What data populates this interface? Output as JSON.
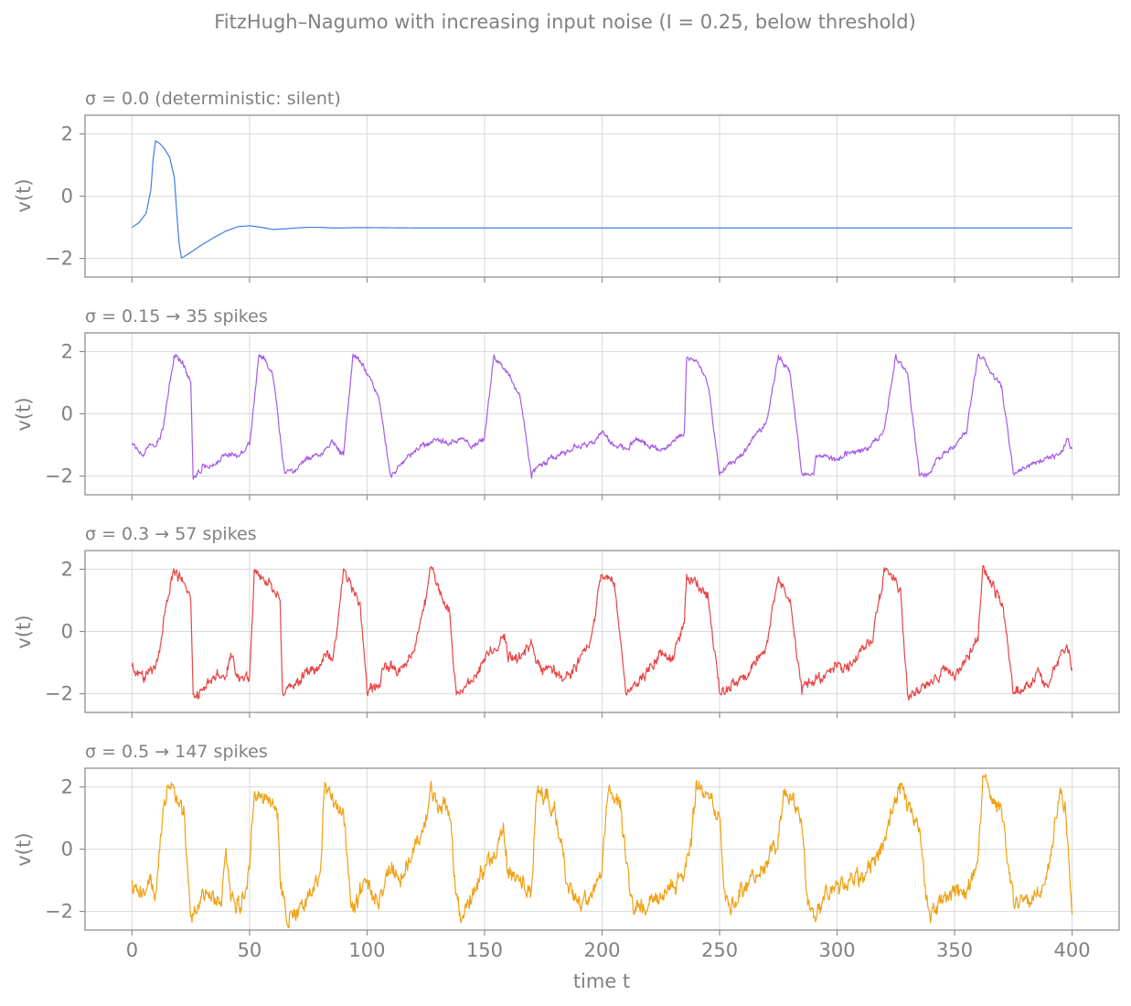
{
  "figure": {
    "suptitle": "FitzHugh–Nagumo with increasing input noise (I = 0.25, below threshold)",
    "xlabel": "time  t"
  },
  "chart_data": [
    {
      "type": "line",
      "title": "σ = 0.0  (deterministic: silent)",
      "ylabel": "v(t)",
      "color": "#3d7fe0",
      "noise": 0.0,
      "xlim": [
        -20,
        420
      ],
      "ylim": [
        -2.6,
        2.6
      ],
      "xticks": [
        0,
        50,
        100,
        150,
        200,
        250,
        300,
        350,
        400
      ],
      "yticks": [
        -2,
        0,
        2
      ],
      "xticklabels": [
        "0",
        "50",
        "100",
        "150",
        "200",
        "250",
        "300",
        "350",
        "400"
      ],
      "yticklabels": [
        "−2",
        "0",
        "2"
      ],
      "grid": true,
      "series": [
        {
          "x": [
            0,
            3,
            6,
            8,
            9,
            10,
            12,
            14,
            16,
            18,
            19,
            20,
            21,
            22,
            26,
            30,
            35,
            40,
            45,
            50,
            55,
            60,
            65,
            70,
            75,
            80,
            85,
            90,
            95,
            100,
            120,
            150,
            200,
            300,
            400
          ],
          "y": [
            -1.0,
            -0.85,
            -0.55,
            0.2,
            1.2,
            1.78,
            1.68,
            1.5,
            1.25,
            0.6,
            -0.5,
            -1.5,
            -1.98,
            -1.95,
            -1.75,
            -1.55,
            -1.32,
            -1.12,
            -0.98,
            -0.95,
            -1.0,
            -1.07,
            -1.05,
            -1.02,
            -1.0,
            -1.0,
            -1.02,
            -1.02,
            -1.01,
            -1.01,
            -1.02,
            -1.02,
            -1.02,
            -1.02,
            -1.02
          ]
        }
      ]
    },
    {
      "type": "line",
      "title": "σ = 0.15   →  35 spikes",
      "ylabel": "v(t)",
      "color": "#a55be8",
      "noise": 0.15,
      "xlim": [
        -20,
        420
      ],
      "ylim": [
        -2.6,
        2.6
      ],
      "xticks": [
        0,
        50,
        100,
        150,
        200,
        250,
        300,
        350,
        400
      ],
      "yticks": [
        -2,
        0,
        2
      ],
      "xticklabels": [
        "0",
        "50",
        "100",
        "150",
        "200",
        "250",
        "300",
        "350",
        "400"
      ],
      "yticklabels": [
        "−2",
        "0",
        "2"
      ],
      "grid": true,
      "series": [
        {
          "x": [
            0,
            5,
            8,
            10,
            12,
            13,
            15,
            18,
            22,
            25,
            26,
            30,
            35,
            40,
            45,
            50,
            54,
            56,
            60,
            65,
            66,
            70,
            75,
            80,
            85,
            90,
            94,
            96,
            100,
            105,
            110,
            111,
            115,
            120,
            125,
            130,
            135,
            140,
            145,
            150,
            154,
            156,
            160,
            165,
            170,
            171,
            175,
            180,
            185,
            190,
            195,
            200,
            205,
            210,
            215,
            220,
            225,
            230,
            235,
            236,
            240,
            245,
            250,
            251,
            255,
            260,
            265,
            270,
            275,
            277,
            280,
            285,
            290,
            291,
            295,
            300,
            305,
            310,
            315,
            320,
            325,
            326,
            330,
            335,
            340,
            341,
            345,
            350,
            355,
            360,
            363,
            365,
            370,
            375,
            376,
            380,
            385,
            390,
            395,
            398,
            400
          ],
          "y": [
            -1.0,
            -1.3,
            -1.0,
            -1.1,
            -0.7,
            -0.5,
            0.4,
            1.9,
            1.6,
            1.0,
            -2.05,
            -1.7,
            -1.6,
            -1.3,
            -1.3,
            -1.0,
            1.85,
            1.8,
            1.2,
            -2.0,
            -1.9,
            -1.8,
            -1.4,
            -1.3,
            -0.9,
            -1.3,
            1.9,
            1.8,
            1.3,
            0.6,
            -2.05,
            -1.9,
            -1.6,
            -1.2,
            -1.0,
            -0.85,
            -0.95,
            -0.8,
            -1.0,
            -0.8,
            1.9,
            1.6,
            1.3,
            0.6,
            -2.0,
            -1.8,
            -1.6,
            -1.4,
            -1.2,
            -1.0,
            -1.0,
            -0.6,
            -1.0,
            -1.1,
            -0.8,
            -1.0,
            -1.2,
            -0.9,
            -0.6,
            1.85,
            1.7,
            1.0,
            -1.9,
            -1.8,
            -1.6,
            -1.3,
            -0.7,
            -0.3,
            1.85,
            1.7,
            1.3,
            -1.9,
            -1.9,
            -1.4,
            -1.3,
            -1.5,
            -1.2,
            -1.2,
            -1.0,
            -0.5,
            1.9,
            1.7,
            1.3,
            -1.95,
            -1.9,
            -1.6,
            -1.3,
            -1.0,
            -0.6,
            1.9,
            1.7,
            1.3,
            0.9,
            -1.9,
            -1.9,
            -1.7,
            -1.6,
            -1.4,
            -1.3,
            -0.8,
            -1.2
          ]
        }
      ]
    },
    {
      "type": "line",
      "title": "σ = 0.3   →  57 spikes",
      "ylabel": "v(t)",
      "color": "#e84545",
      "noise": 0.3,
      "xlim": [
        -20,
        420
      ],
      "ylim": [
        -2.6,
        2.6
      ],
      "xticks": [
        0,
        50,
        100,
        150,
        200,
        250,
        300,
        350,
        400
      ],
      "yticks": [
        -2,
        0,
        2
      ],
      "xticklabels": [
        "0",
        "50",
        "100",
        "150",
        "200",
        "250",
        "300",
        "350",
        "400"
      ],
      "yticklabels": [
        "−2",
        "0",
        "2"
      ],
      "grid": true,
      "series": [
        {
          "x": [
            0,
            5,
            8,
            10,
            12,
            14,
            18,
            22,
            25,
            26,
            30,
            35,
            40,
            42,
            45,
            50,
            52,
            55,
            60,
            63,
            64,
            68,
            75,
            80,
            82,
            85,
            90,
            93,
            94,
            97,
            100,
            105,
            107,
            110,
            115,
            120,
            125,
            127,
            130,
            135,
            138,
            139,
            145,
            150,
            155,
            158,
            160,
            165,
            170,
            172,
            175,
            180,
            185,
            190,
            195,
            200,
            204,
            206,
            210,
            215,
            220,
            225,
            230,
            235,
            236,
            240,
            245,
            250,
            251,
            255,
            260,
            265,
            270,
            275,
            276,
            280,
            285,
            286,
            290,
            295,
            300,
            305,
            310,
            315,
            320,
            325,
            327,
            330,
            335,
            336,
            340,
            345,
            350,
            355,
            360,
            362,
            365,
            370,
            375,
            377,
            380,
            385,
            390,
            395,
            398,
            400
          ],
          "y": [
            -1.2,
            -1.5,
            -1.1,
            -1.3,
            -0.5,
            0.8,
            2.0,
            1.6,
            1.1,
            -2.0,
            -1.9,
            -1.5,
            -1.4,
            -0.7,
            -1.5,
            -1.4,
            1.9,
            1.8,
            1.4,
            1.2,
            -2.0,
            -1.8,
            -1.3,
            -1.2,
            -0.6,
            -1.1,
            1.8,
            1.7,
            1.3,
            0.8,
            -1.9,
            -1.7,
            -1.2,
            -1.1,
            -1.3,
            -0.5,
            1.0,
            2.1,
            1.4,
            0.7,
            -2.1,
            -1.9,
            -1.5,
            -0.9,
            -0.5,
            0.0,
            -0.8,
            -0.9,
            -0.4,
            -1.0,
            -1.2,
            -1.3,
            -1.5,
            -1.0,
            -0.3,
            1.9,
            1.6,
            1.2,
            -2.0,
            -1.6,
            -1.2,
            -0.7,
            -0.9,
            0.2,
            1.8,
            1.6,
            1.1,
            -2.0,
            -1.9,
            -1.7,
            -1.5,
            -1.0,
            -0.5,
            1.8,
            1.6,
            1.0,
            -2.0,
            -1.8,
            -1.6,
            -1.4,
            -1.1,
            -1.2,
            -0.6,
            -0.3,
            1.9,
            1.7,
            1.2,
            -2.0,
            -1.9,
            -1.7,
            -1.6,
            -1.3,
            -1.4,
            -0.9,
            -0.2,
            2.0,
            1.6,
            1.0,
            -2.0,
            -1.9,
            -1.8,
            -1.4,
            -1.6,
            -0.8,
            -0.6,
            -1.2
          ]
        }
      ]
    },
    {
      "type": "line",
      "title": "σ = 0.5   →  147 spikes",
      "ylabel": "v(t)",
      "color": "#f0a010",
      "noise": 0.5,
      "xlim": [
        -20,
        420
      ],
      "ylim": [
        -2.6,
        2.6
      ],
      "xticks": [
        0,
        50,
        100,
        150,
        200,
        250,
        300,
        350,
        400
      ],
      "yticks": [
        -2,
        0,
        2
      ],
      "xticklabels": [
        "0",
        "50",
        "100",
        "150",
        "200",
        "250",
        "300",
        "350",
        "400"
      ],
      "yticklabels": [
        "−2",
        "0",
        "2"
      ],
      "grid": true,
      "series": [
        {
          "x": [
            0,
            5,
            8,
            10,
            12,
            15,
            18,
            22,
            24,
            25,
            28,
            32,
            38,
            40,
            42,
            46,
            50,
            52,
            55,
            60,
            62,
            63,
            66,
            70,
            75,
            80,
            82,
            85,
            90,
            93,
            94,
            97,
            100,
            102,
            105,
            110,
            115,
            120,
            125,
            127,
            130,
            135,
            138,
            140,
            145,
            150,
            155,
            158,
            160,
            165,
            170,
            172,
            175,
            180,
            185,
            190,
            195,
            200,
            203,
            205,
            208,
            212,
            214,
            218,
            225,
            230,
            235,
            238,
            240,
            245,
            250,
            252,
            255,
            260,
            265,
            270,
            275,
            277,
            280,
            285,
            287,
            290,
            295,
            300,
            305,
            310,
            315,
            320,
            325,
            328,
            330,
            335,
            338,
            340,
            345,
            350,
            355,
            360,
            362,
            365,
            370,
            373,
            375,
            380,
            385,
            390,
            395,
            397,
            400
          ],
          "y": [
            -1.2,
            -1.6,
            -0.9,
            -1.4,
            0.3,
            2.1,
            1.8,
            1.2,
            -1.2,
            -2.2,
            -1.7,
            -1.4,
            -1.8,
            -0.1,
            -1.7,
            -1.9,
            -0.5,
            1.8,
            1.7,
            1.6,
            1.2,
            -1.0,
            -2.1,
            -2.0,
            -1.5,
            -1.0,
            2.1,
            1.6,
            1.0,
            -1.5,
            -2.0,
            -1.4,
            -1.0,
            -1.5,
            -1.7,
            -0.5,
            -0.8,
            -0.2,
            1.0,
            2.0,
            1.5,
            1.3,
            -1.6,
            -2.2,
            -1.4,
            -0.5,
            0.0,
            0.8,
            -0.8,
            -1.0,
            -1.5,
            1.7,
            1.8,
            1.2,
            -1.0,
            -1.8,
            -1.6,
            -0.5,
            1.9,
            1.5,
            1.3,
            -1.5,
            -2.0,
            -1.8,
            -1.4,
            -1.2,
            -0.8,
            0.2,
            2.0,
            1.6,
            1.2,
            -1.5,
            -1.8,
            -1.3,
            -0.9,
            -0.5,
            0.3,
            1.9,
            1.6,
            1.0,
            -1.5,
            -2.1,
            -1.5,
            -1.3,
            -1.0,
            -1.0,
            -0.4,
            0.3,
            1.7,
            2.0,
            1.4,
            0.8,
            -1.7,
            -2.1,
            -1.6,
            -1.3,
            -1.4,
            -0.4,
            2.2,
            1.8,
            1.2,
            -0.8,
            -1.7,
            -1.8,
            -1.6,
            -0.8,
            1.9,
            1.5,
            -2.1
          ]
        }
      ]
    }
  ]
}
